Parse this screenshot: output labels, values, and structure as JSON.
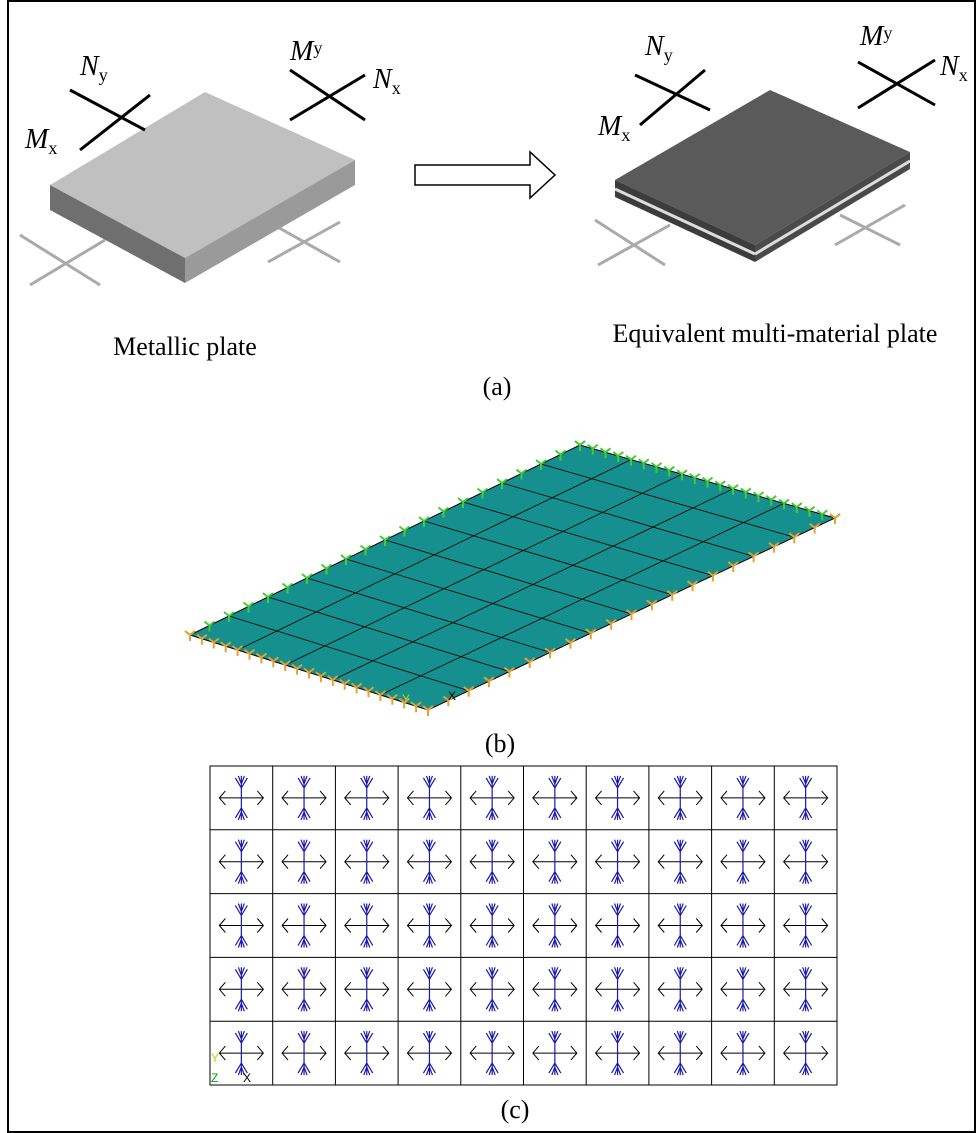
{
  "panel_a": {
    "left_plate": {
      "caption": "Metallic plate",
      "labels": [
        {
          "symbol": "N",
          "subscript": "y"
        },
        {
          "symbol": "M",
          "subscript": "x"
        },
        {
          "symbol": "M",
          "subscript": "y"
        },
        {
          "symbol": "N",
          "subscript": "x"
        }
      ]
    },
    "right_plate": {
      "caption": "Equivalent multi-material plate",
      "labels": [
        {
          "symbol": "N",
          "subscript": "y"
        },
        {
          "symbol": "M",
          "subscript": "x"
        },
        {
          "symbol": "M",
          "subscript": "y"
        },
        {
          "symbol": "N",
          "subscript": "x"
        }
      ]
    },
    "label": "(a)"
  },
  "panel_b": {
    "label": "(b)",
    "axis_labels": [
      "Y",
      "X"
    ]
  },
  "panel_c": {
    "label": "(c)",
    "axis_labels": [
      "Y",
      "Z",
      "X"
    ]
  }
}
